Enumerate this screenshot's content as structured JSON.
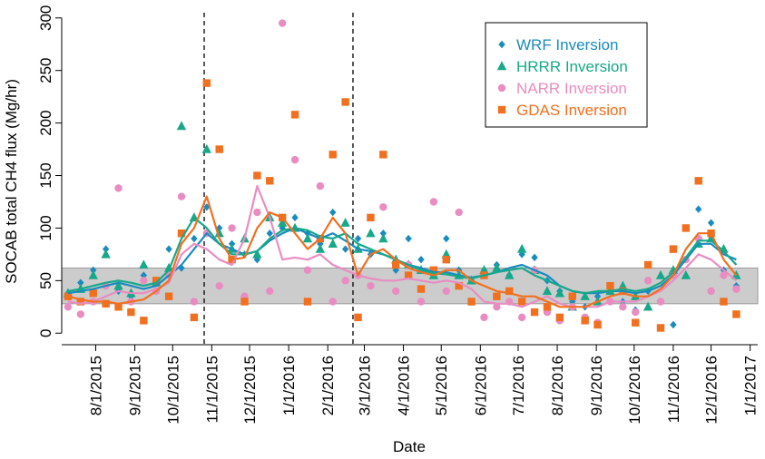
{
  "chart_data": {
    "type": "scatter",
    "x_label": "Date",
    "y_label": "SOCAB total CH4 flux (Mg/hr)",
    "xlim": [
      "7/5/2015",
      "1/7/2017"
    ],
    "ylim": [
      -11,
      305
    ],
    "yticks": [
      0,
      50,
      100,
      150,
      200,
      250,
      300
    ],
    "xticks": [
      "8/1/2015",
      "9/1/2015",
      "10/1/2015",
      "11/1/2015",
      "12/1/2015",
      "1/1/2016",
      "2/1/2016",
      "3/1/2016",
      "4/1/2016",
      "5/1/2016",
      "6/1/2016",
      "7/1/2016",
      "8/1/2016",
      "9/1/2016",
      "10/1/2016",
      "11/1/2016",
      "12/1/2016",
      "1/1/2017"
    ],
    "band": [
      28,
      62
    ],
    "band_color": "#cccccc",
    "vlines": [
      "10/26/2015",
      "2/21/2016"
    ],
    "legend": "top-right",
    "x": [
      "7/10/2015",
      "7/20/2015",
      "7/30/2015",
      "8/9/2015",
      "8/19/2015",
      "8/29/2015",
      "9/8/2015",
      "9/18/2015",
      "9/28/2015",
      "10/8/2015",
      "10/18/2015",
      "10/28/2015",
      "11/7/2015",
      "11/17/2015",
      "11/27/2015",
      "12/7/2015",
      "12/17/2015",
      "12/27/2015",
      "1/6/2016",
      "1/16/2016",
      "1/26/2016",
      "2/5/2016",
      "2/15/2016",
      "2/25/2016",
      "3/6/2016",
      "3/16/2016",
      "3/26/2016",
      "4/5/2016",
      "4/15/2016",
      "4/25/2016",
      "5/5/2016",
      "5/15/2016",
      "5/25/2016",
      "6/4/2016",
      "6/14/2016",
      "6/24/2016",
      "7/4/2016",
      "7/14/2016",
      "7/24/2016",
      "8/3/2016",
      "8/13/2016",
      "8/23/2016",
      "9/2/2016",
      "9/12/2016",
      "9/22/2016",
      "10/2/2016",
      "10/12/2016",
      "10/22/2016",
      "11/1/2016",
      "11/11/2016",
      "11/21/2016",
      "12/1/2016",
      "12/11/2016",
      "12/21/2016"
    ],
    "series": [
      {
        "name": "WRF Inversion",
        "color": "#1a8bbf",
        "marker": "diamond",
        "values": [
          38,
          48,
          60,
          80,
          40,
          35,
          55,
          50,
          80,
          62,
          90,
          120,
          100,
          85,
          75,
          70,
          95,
          100,
          110,
          95,
          85,
          115,
          80,
          90,
          75,
          95,
          60,
          90,
          70,
          55,
          90,
          60,
          50,
          60,
          65,
          55,
          75,
          72,
          50,
          40,
          30,
          25,
          35,
          45,
          30,
          22,
          40,
          30,
          8,
          70,
          118,
          105,
          60,
          45
        ],
        "trend": [
          38,
          40,
          42,
          45,
          48,
          45,
          42,
          45,
          55,
          65,
          80,
          95,
          85,
          80,
          75,
          78,
          88,
          95,
          100,
          95,
          90,
          95,
          88,
          80,
          78,
          75,
          70,
          65,
          62,
          58,
          58,
          55,
          53,
          55,
          58,
          62,
          65,
          60,
          55,
          45,
          40,
          38,
          38,
          40,
          40,
          38,
          40,
          45,
          55,
          70,
          85,
          85,
          75,
          70
        ]
      },
      {
        "name": "HRRR Inversion",
        "color": "#17a889",
        "marker": "triangle",
        "values": [
          38,
          42,
          55,
          75,
          45,
          38,
          65,
          48,
          62,
          197,
          110,
          175,
          95,
          80,
          90,
          75,
          110,
          105,
          100,
          90,
          80,
          85,
          105,
          80,
          95,
          90,
          70,
          65,
          60,
          55,
          75,
          55,
          50,
          60,
          62,
          55,
          80,
          60,
          40,
          38,
          25,
          35,
          30,
          40,
          45,
          35,
          25,
          55,
          60,
          55,
          85,
          90,
          80,
          55
        ],
        "trend": [
          40,
          42,
          45,
          48,
          50,
          48,
          45,
          48,
          60,
          90,
          110,
          100,
          85,
          75,
          75,
          78,
          90,
          98,
          100,
          98,
          92,
          90,
          95,
          85,
          80,
          75,
          70,
          65,
          60,
          57,
          56,
          54,
          52,
          55,
          58,
          60,
          62,
          55,
          50,
          45,
          40,
          38,
          40,
          40,
          42,
          40,
          42,
          48,
          58,
          72,
          88,
          88,
          78,
          65
        ]
      },
      {
        "name": "NARR Inversion",
        "color": "#e98cc2",
        "marker": "circle",
        "values": [
          25,
          18,
          30,
          45,
          138,
          30,
          50,
          40,
          55,
          130,
          30,
          95,
          45,
          100,
          35,
          115,
          40,
          295,
          165,
          60,
          140,
          30,
          50,
          55,
          45,
          120,
          40,
          65,
          30,
          125,
          40,
          115,
          30,
          15,
          25,
          30,
          15,
          60,
          20,
          12,
          25,
          15,
          10,
          30,
          25,
          20,
          50,
          30,
          55,
          70,
          90,
          40,
          55,
          42
        ],
        "trend": [
          30,
          28,
          30,
          35,
          40,
          38,
          38,
          42,
          48,
          75,
          85,
          80,
          70,
          65,
          90,
          140,
          110,
          70,
          72,
          70,
          75,
          65,
          60,
          55,
          52,
          50,
          50,
          52,
          50,
          48,
          50,
          48,
          42,
          30,
          28,
          28,
          25,
          30,
          35,
          28,
          25,
          25,
          25,
          30,
          30,
          30,
          35,
          40,
          50,
          62,
          75,
          70,
          60,
          50
        ]
      },
      {
        "name": "GDAS Inversion",
        "color": "#f07020",
        "marker": "square",
        "values": [
          35,
          30,
          38,
          28,
          25,
          20,
          12,
          50,
          35,
          95,
          15,
          238,
          175,
          70,
          30,
          150,
          145,
          110,
          208,
          30,
          90,
          170,
          220,
          15,
          110,
          170,
          65,
          55,
          42,
          60,
          70,
          45,
          30,
          55,
          35,
          40,
          30,
          20,
          25,
          15,
          35,
          12,
          8,
          45,
          40,
          10,
          65,
          5,
          80,
          100,
          145,
          95,
          30,
          18
        ],
        "trend": [
          35,
          32,
          30,
          30,
          28,
          30,
          32,
          40,
          50,
          85,
          100,
          130,
          90,
          70,
          72,
          100,
          115,
          110,
          95,
          80,
          90,
          110,
          95,
          55,
          75,
          80,
          70,
          62,
          58,
          55,
          60,
          60,
          50,
          45,
          40,
          38,
          35,
          35,
          30,
          25,
          25,
          25,
          30,
          35,
          38,
          35,
          35,
          42,
          55,
          80,
          95,
          95,
          70,
          55
        ]
      }
    ]
  }
}
